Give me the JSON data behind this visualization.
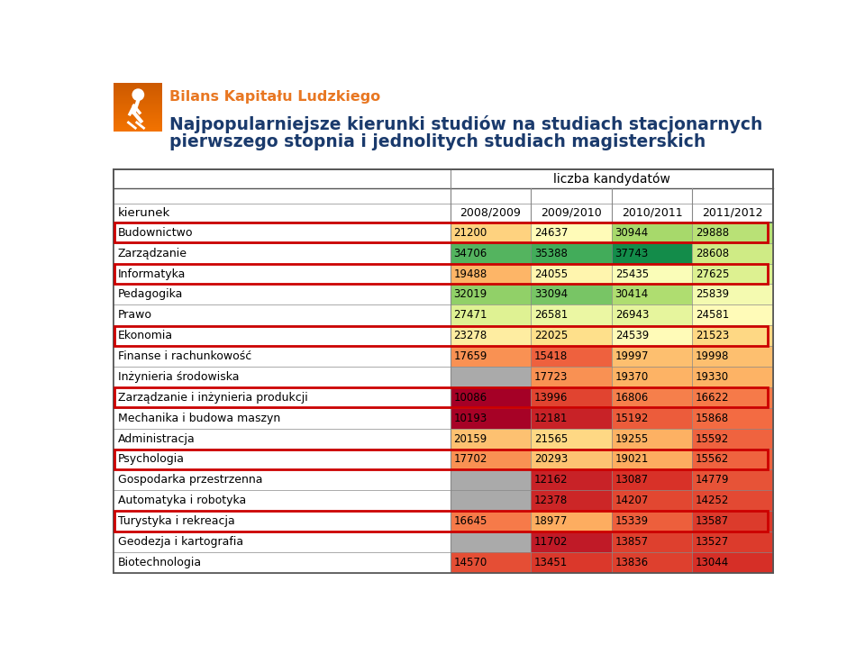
{
  "title_line1": "Najpopularniejsze kierunki studiów na studiach stacjonarnych",
  "title_line2": "pierwszego stopnia i jednolitych studiach magisterskich",
  "brand_text": "Bilans Kapitału Ludzkiego",
  "table_header_main": "liczba kandydatów",
  "col_header": "kierunek",
  "year_cols": [
    "2008/2009",
    "2009/2010",
    "2010/2011",
    "2011/2012"
  ],
  "rows": [
    {
      "name": "Budownictwo",
      "vals": [
        21200,
        24637,
        30944,
        29888
      ],
      "has_border": true
    },
    {
      "name": "Zarządzanie",
      "vals": [
        34706,
        35388,
        37743,
        28608
      ],
      "has_border": false
    },
    {
      "name": "Informatyka",
      "vals": [
        19488,
        24055,
        25435,
        27625
      ],
      "has_border": true
    },
    {
      "name": "Pedagogika",
      "vals": [
        32019,
        33094,
        30414,
        25839
      ],
      "has_border": false
    },
    {
      "name": "Prawo",
      "vals": [
        27471,
        26581,
        26943,
        24581
      ],
      "has_border": false
    },
    {
      "name": "Ekonomia",
      "vals": [
        23278,
        22025,
        24539,
        21523
      ],
      "has_border": true
    },
    {
      "name": "Finanse i rachunkowość",
      "vals": [
        17659,
        15418,
        19997,
        19998
      ],
      "has_border": false
    },
    {
      "name": "Inżynieria środowiska",
      "vals": [
        null,
        17723,
        19370,
        19330
      ],
      "has_border": false
    },
    {
      "name": "Zarządzanie i inżynieria produkcji",
      "vals": [
        10086,
        13996,
        16806,
        16622
      ],
      "has_border": true
    },
    {
      "name": "Mechanika i budowa maszyn",
      "vals": [
        10193,
        12181,
        15192,
        15868
      ],
      "has_border": false
    },
    {
      "name": "Administracja",
      "vals": [
        20159,
        21565,
        19255,
        15592
      ],
      "has_border": false
    },
    {
      "name": "Psychologia",
      "vals": [
        17702,
        20293,
        19021,
        15562
      ],
      "has_border": true
    },
    {
      "name": "Gospodarka przestrzenna",
      "vals": [
        null,
        12162,
        13087,
        14779
      ],
      "has_border": false
    },
    {
      "name": "Automatyka i robotyka",
      "vals": [
        null,
        12378,
        14207,
        14252
      ],
      "has_border": false
    },
    {
      "name": "Turystyka i rekreacja",
      "vals": [
        16645,
        18977,
        15339,
        13587
      ],
      "has_border": true
    },
    {
      "name": "Geodezja i kartografia",
      "vals": [
        null,
        11702,
        13857,
        13527
      ],
      "has_border": false
    },
    {
      "name": "Biotechnologia",
      "vals": [
        14570,
        13451,
        13836,
        13044
      ],
      "has_border": false
    }
  ],
  "vmin": 10000,
  "vmax": 40000,
  "gray_color": "#aaaaaa",
  "border_color": "#cc0000",
  "orange_logo": "#f07000",
  "orange_logo2": "#e86800",
  "title_color": "#1a3a6c",
  "brand_color": "#e87722",
  "line_color": "#888888",
  "table_line_color": "#555555"
}
